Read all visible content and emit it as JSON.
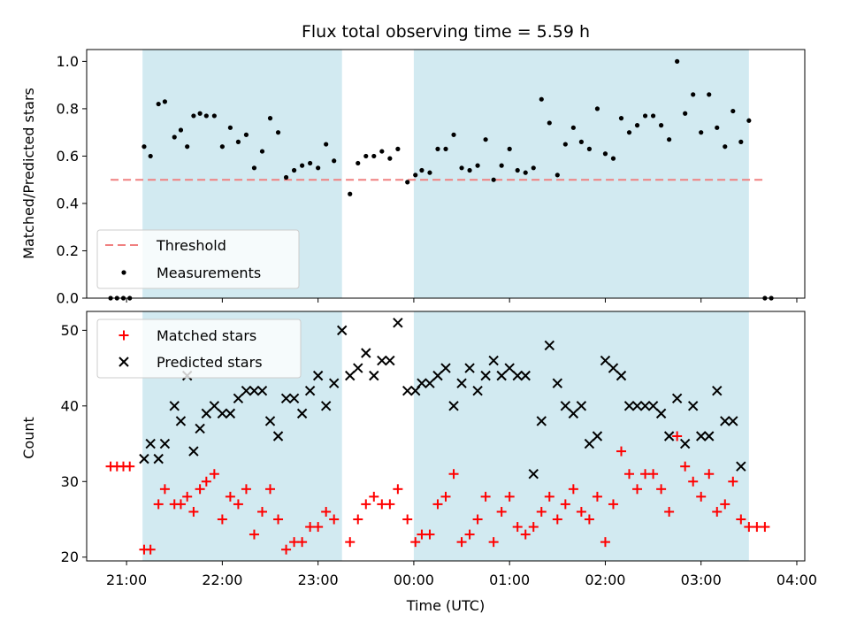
{
  "chart_data": [
    {
      "type": "scatter",
      "title": "Flux total observing time = 5.59 h",
      "xlabel": "",
      "ylabel": "Matched/Predicted stars",
      "xlim": [
        "20:35",
        "04:05"
      ],
      "ylim": [
        0.0,
        1.05
      ],
      "yticks": [
        0.0,
        0.2,
        0.4,
        0.6,
        0.8,
        1.0
      ],
      "ytick_labels": [
        "0.0",
        "0.2",
        "0.4",
        "0.6",
        "0.8",
        "1.0"
      ],
      "shaded_intervals": [
        [
          "21:10",
          "23:15"
        ],
        [
          "00:00",
          "03:30"
        ]
      ],
      "shade_color": "#add8e6",
      "threshold": {
        "name": "Threshold",
        "value": 0.5,
        "x_range": [
          "20:50",
          "03:40"
        ],
        "color": "#f08080"
      },
      "legend": {
        "placement": "lower-left",
        "entries": [
          "Threshold",
          "Measurements"
        ]
      },
      "series": [
        {
          "name": "Measurements",
          "marker": "dot",
          "color": "#000000",
          "points": [
            [
              "20:50",
              0.0
            ],
            [
              "20:54",
              0.0
            ],
            [
              "20:58",
              0.0
            ],
            [
              "21:02",
              0.0
            ],
            [
              "21:11",
              0.64
            ],
            [
              "21:15",
              0.6
            ],
            [
              "21:20",
              0.82
            ],
            [
              "21:24",
              0.83
            ],
            [
              "21:30",
              0.68
            ],
            [
              "21:34",
              0.71
            ],
            [
              "21:38",
              0.64
            ],
            [
              "21:42",
              0.77
            ],
            [
              "21:46",
              0.78
            ],
            [
              "21:50",
              0.77
            ],
            [
              "21:55",
              0.77
            ],
            [
              "22:00",
              0.64
            ],
            [
              "22:05",
              0.72
            ],
            [
              "22:10",
              0.66
            ],
            [
              "22:15",
              0.69
            ],
            [
              "22:20",
              0.55
            ],
            [
              "22:25",
              0.62
            ],
            [
              "22:30",
              0.76
            ],
            [
              "22:35",
              0.7
            ],
            [
              "22:40",
              0.51
            ],
            [
              "22:45",
              0.54
            ],
            [
              "22:50",
              0.56
            ],
            [
              "22:55",
              0.57
            ],
            [
              "23:00",
              0.55
            ],
            [
              "23:05",
              0.65
            ],
            [
              "23:10",
              0.58
            ],
            [
              "23:20",
              0.44
            ],
            [
              "23:25",
              0.57
            ],
            [
              "23:30",
              0.6
            ],
            [
              "23:35",
              0.6
            ],
            [
              "23:40",
              0.62
            ],
            [
              "23:45",
              0.59
            ],
            [
              "23:50",
              0.63
            ],
            [
              "23:56",
              0.49
            ],
            [
              "00:01",
              0.52
            ],
            [
              "00:05",
              0.54
            ],
            [
              "00:10",
              0.53
            ],
            [
              "00:15",
              0.63
            ],
            [
              "00:20",
              0.63
            ],
            [
              "00:25",
              0.69
            ],
            [
              "00:30",
              0.55
            ],
            [
              "00:35",
              0.54
            ],
            [
              "00:40",
              0.56
            ],
            [
              "00:45",
              0.67
            ],
            [
              "00:50",
              0.5
            ],
            [
              "00:55",
              0.56
            ],
            [
              "01:00",
              0.63
            ],
            [
              "01:05",
              0.54
            ],
            [
              "01:10",
              0.53
            ],
            [
              "01:15",
              0.55
            ],
            [
              "01:20",
              0.84
            ],
            [
              "01:25",
              0.74
            ],
            [
              "01:30",
              0.52
            ],
            [
              "01:35",
              0.65
            ],
            [
              "01:40",
              0.72
            ],
            [
              "01:45",
              0.66
            ],
            [
              "01:50",
              0.63
            ],
            [
              "01:55",
              0.8
            ],
            [
              "02:00",
              0.61
            ],
            [
              "02:05",
              0.59
            ],
            [
              "02:10",
              0.76
            ],
            [
              "02:15",
              0.7
            ],
            [
              "02:20",
              0.73
            ],
            [
              "02:25",
              0.77
            ],
            [
              "02:30",
              0.77
            ],
            [
              "02:35",
              0.73
            ],
            [
              "02:40",
              0.67
            ],
            [
              "02:45",
              1.0
            ],
            [
              "02:50",
              0.78
            ],
            [
              "02:55",
              0.86
            ],
            [
              "03:00",
              0.7
            ],
            [
              "03:05",
              0.86
            ],
            [
              "03:10",
              0.72
            ],
            [
              "03:15",
              0.64
            ],
            [
              "03:20",
              0.79
            ],
            [
              "03:25",
              0.66
            ],
            [
              "03:30",
              0.75
            ],
            [
              "03:40",
              0.0
            ],
            [
              "03:44",
              0.0
            ]
          ]
        }
      ]
    },
    {
      "type": "scatter",
      "title": "",
      "xlabel": "Time (UTC)",
      "ylabel": "Count",
      "xlim": [
        "20:35",
        "04:05"
      ],
      "ylim": [
        19.5,
        52.5
      ],
      "yticks": [
        20,
        30,
        40,
        50
      ],
      "ytick_labels": [
        "20",
        "30",
        "40",
        "50"
      ],
      "xticks": [
        "21:00",
        "22:00",
        "23:00",
        "00:00",
        "01:00",
        "02:00",
        "03:00",
        "04:00"
      ],
      "shaded_intervals": [
        [
          "21:10",
          "23:15"
        ],
        [
          "00:00",
          "03:30"
        ]
      ],
      "shade_color": "#add8e6",
      "legend": {
        "placement": "upper-left",
        "entries": [
          "Matched stars",
          "Predicted stars"
        ]
      },
      "series": [
        {
          "name": "Matched stars",
          "marker": "plus",
          "color": "#ff0000",
          "points": [
            [
              "20:50",
              32
            ],
            [
              "20:54",
              32
            ],
            [
              "20:58",
              32
            ],
            [
              "21:02",
              32
            ],
            [
              "21:11",
              21
            ],
            [
              "21:15",
              21
            ],
            [
              "21:20",
              27
            ],
            [
              "21:24",
              29
            ],
            [
              "21:30",
              27
            ],
            [
              "21:34",
              27
            ],
            [
              "21:38",
              28
            ],
            [
              "21:42",
              26
            ],
            [
              "21:46",
              29
            ],
            [
              "21:50",
              30
            ],
            [
              "21:55",
              31
            ],
            [
              "22:00",
              25
            ],
            [
              "22:05",
              28
            ],
            [
              "22:10",
              27
            ],
            [
              "22:15",
              29
            ],
            [
              "22:20",
              23
            ],
            [
              "22:25",
              26
            ],
            [
              "22:30",
              29
            ],
            [
              "22:35",
              25
            ],
            [
              "22:40",
              21
            ],
            [
              "22:45",
              22
            ],
            [
              "22:50",
              22
            ],
            [
              "22:55",
              24
            ],
            [
              "23:00",
              24
            ],
            [
              "23:05",
              26
            ],
            [
              "23:10",
              25
            ],
            [
              "23:20",
              22
            ],
            [
              "23:25",
              25
            ],
            [
              "23:30",
              27
            ],
            [
              "23:35",
              28
            ],
            [
              "23:40",
              27
            ],
            [
              "23:45",
              27
            ],
            [
              "23:50",
              29
            ],
            [
              "23:56",
              25
            ],
            [
              "00:01",
              22
            ],
            [
              "00:05",
              23
            ],
            [
              "00:10",
              23
            ],
            [
              "00:15",
              27
            ],
            [
              "00:20",
              28
            ],
            [
              "00:25",
              31
            ],
            [
              "00:30",
              22
            ],
            [
              "00:35",
              23
            ],
            [
              "00:40",
              25
            ],
            [
              "00:45",
              28
            ],
            [
              "00:50",
              22
            ],
            [
              "00:55",
              26
            ],
            [
              "01:00",
              28
            ],
            [
              "01:05",
              24
            ],
            [
              "01:10",
              23
            ],
            [
              "01:15",
              24
            ],
            [
              "01:20",
              26
            ],
            [
              "01:25",
              28
            ],
            [
              "01:30",
              25
            ],
            [
              "01:35",
              27
            ],
            [
              "01:40",
              29
            ],
            [
              "01:45",
              26
            ],
            [
              "01:50",
              25
            ],
            [
              "01:55",
              28
            ],
            [
              "02:00",
              22
            ],
            [
              "02:05",
              27
            ],
            [
              "02:10",
              34
            ],
            [
              "02:15",
              31
            ],
            [
              "02:20",
              29
            ],
            [
              "02:25",
              31
            ],
            [
              "02:30",
              31
            ],
            [
              "02:35",
              29
            ],
            [
              "02:40",
              26
            ],
            [
              "02:45",
              36
            ],
            [
              "02:50",
              32
            ],
            [
              "02:55",
              30
            ],
            [
              "03:00",
              28
            ],
            [
              "03:05",
              31
            ],
            [
              "03:10",
              26
            ],
            [
              "03:15",
              27
            ],
            [
              "03:20",
              30
            ],
            [
              "03:25",
              25
            ],
            [
              "03:30",
              24
            ],
            [
              "03:35",
              24
            ],
            [
              "03:40",
              24
            ]
          ]
        },
        {
          "name": "Predicted stars",
          "marker": "x",
          "color": "#000000",
          "points": [
            [
              "21:11",
              33
            ],
            [
              "21:15",
              35
            ],
            [
              "21:20",
              33
            ],
            [
              "21:24",
              35
            ],
            [
              "21:30",
              40
            ],
            [
              "21:34",
              38
            ],
            [
              "21:38",
              44
            ],
            [
              "21:42",
              34
            ],
            [
              "21:46",
              37
            ],
            [
              "21:50",
              39
            ],
            [
              "21:55",
              40
            ],
            [
              "22:00",
              39
            ],
            [
              "22:05",
              39
            ],
            [
              "22:10",
              41
            ],
            [
              "22:15",
              42
            ],
            [
              "22:20",
              42
            ],
            [
              "22:25",
              42
            ],
            [
              "22:30",
              38
            ],
            [
              "22:35",
              36
            ],
            [
              "22:40",
              41
            ],
            [
              "22:45",
              41
            ],
            [
              "22:50",
              39
            ],
            [
              "22:55",
              42
            ],
            [
              "23:00",
              44
            ],
            [
              "23:05",
              40
            ],
            [
              "23:10",
              43
            ],
            [
              "23:15",
              50
            ],
            [
              "23:20",
              44
            ],
            [
              "23:25",
              45
            ],
            [
              "23:30",
              47
            ],
            [
              "23:35",
              44
            ],
            [
              "23:40",
              46
            ],
            [
              "23:45",
              46
            ],
            [
              "23:50",
              51
            ],
            [
              "23:56",
              42
            ],
            [
              "00:01",
              42
            ],
            [
              "00:05",
              43
            ],
            [
              "00:10",
              43
            ],
            [
              "00:15",
              44
            ],
            [
              "00:20",
              45
            ],
            [
              "00:25",
              40
            ],
            [
              "00:30",
              43
            ],
            [
              "00:35",
              45
            ],
            [
              "00:40",
              42
            ],
            [
              "00:45",
              44
            ],
            [
              "00:50",
              46
            ],
            [
              "00:55",
              44
            ],
            [
              "01:00",
              45
            ],
            [
              "01:05",
              44
            ],
            [
              "01:10",
              44
            ],
            [
              "01:15",
              31
            ],
            [
              "01:20",
              38
            ],
            [
              "01:25",
              48
            ],
            [
              "01:30",
              43
            ],
            [
              "01:35",
              40
            ],
            [
              "01:40",
              39
            ],
            [
              "01:45",
              40
            ],
            [
              "01:50",
              35
            ],
            [
              "01:55",
              36
            ],
            [
              "02:00",
              46
            ],
            [
              "02:05",
              45
            ],
            [
              "02:10",
              44
            ],
            [
              "02:15",
              40
            ],
            [
              "02:20",
              40
            ],
            [
              "02:25",
              40
            ],
            [
              "02:30",
              40
            ],
            [
              "02:35",
              39
            ],
            [
              "02:40",
              36
            ],
            [
              "02:45",
              41
            ],
            [
              "02:50",
              35
            ],
            [
              "02:55",
              40
            ],
            [
              "03:00",
              36
            ],
            [
              "03:05",
              36
            ],
            [
              "03:10",
              42
            ],
            [
              "03:15",
              38
            ],
            [
              "03:20",
              38
            ],
            [
              "03:25",
              32
            ]
          ]
        }
      ]
    }
  ]
}
